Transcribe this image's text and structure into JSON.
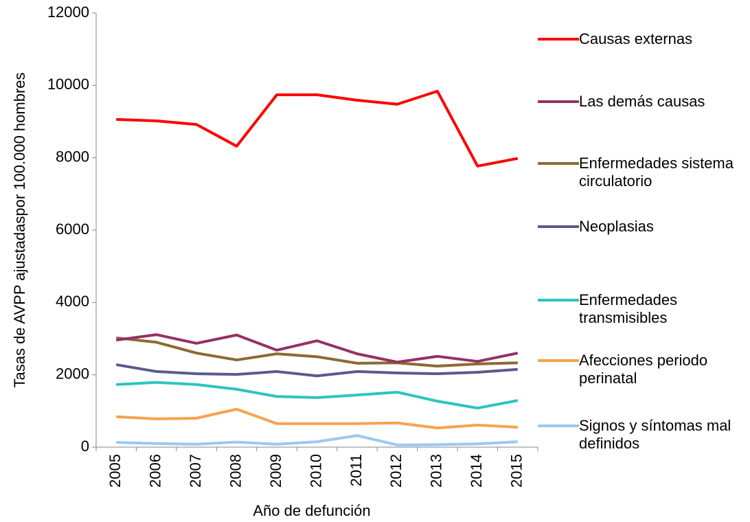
{
  "chart_data": {
    "type": "line",
    "x_label": "Año de defunción",
    "y_label": "Tasas de AVPP ajustadaspor 100.000 hombres",
    "categories": [
      "2005",
      "2006",
      "2007",
      "2008",
      "2009",
      "2010",
      "2011",
      "2012",
      "2013",
      "2014",
      "2015"
    ],
    "ylim": [
      0,
      12000
    ],
    "yticks": [
      0,
      2000,
      4000,
      6000,
      8000,
      10000,
      12000
    ],
    "grid": false,
    "legend": "right",
    "series": [
      {
        "name": "Causas externas",
        "color": "#ff0000",
        "values": [
          9060,
          9020,
          8920,
          8320,
          9740,
          9740,
          9590,
          9480,
          9840,
          7770,
          7980
        ]
      },
      {
        "name": "Las demás causas",
        "color": "#953163",
        "values": [
          2960,
          3110,
          2870,
          3100,
          2680,
          2940,
          2580,
          2350,
          2510,
          2370,
          2600
        ]
      },
      {
        "name": "Enfermedades sistema circulatorio",
        "color": "#8c6a2f",
        "values": [
          3020,
          2900,
          2600,
          2410,
          2580,
          2500,
          2320,
          2330,
          2240,
          2300,
          2330
        ]
      },
      {
        "name": "Neoplasias",
        "color": "#5b5a8d",
        "values": [
          2280,
          2090,
          2030,
          2010,
          2090,
          1970,
          2090,
          2050,
          2030,
          2070,
          2150
        ]
      },
      {
        "name": "Enfermedades transmisibles",
        "color": "#2fc4c0",
        "values": [
          1730,
          1790,
          1730,
          1600,
          1400,
          1370,
          1440,
          1520,
          1270,
          1080,
          1290
        ]
      },
      {
        "name": "Afecciones periodo perinatal",
        "color": "#f9a24a",
        "values": [
          840,
          780,
          800,
          1050,
          650,
          650,
          650,
          670,
          530,
          610,
          550
        ]
      },
      {
        "name": "Signos y síntomas mal definidos",
        "color": "#99c9f5",
        "values": [
          130,
          100,
          80,
          140,
          80,
          150,
          320,
          60,
          70,
          90,
          150
        ]
      }
    ]
  }
}
